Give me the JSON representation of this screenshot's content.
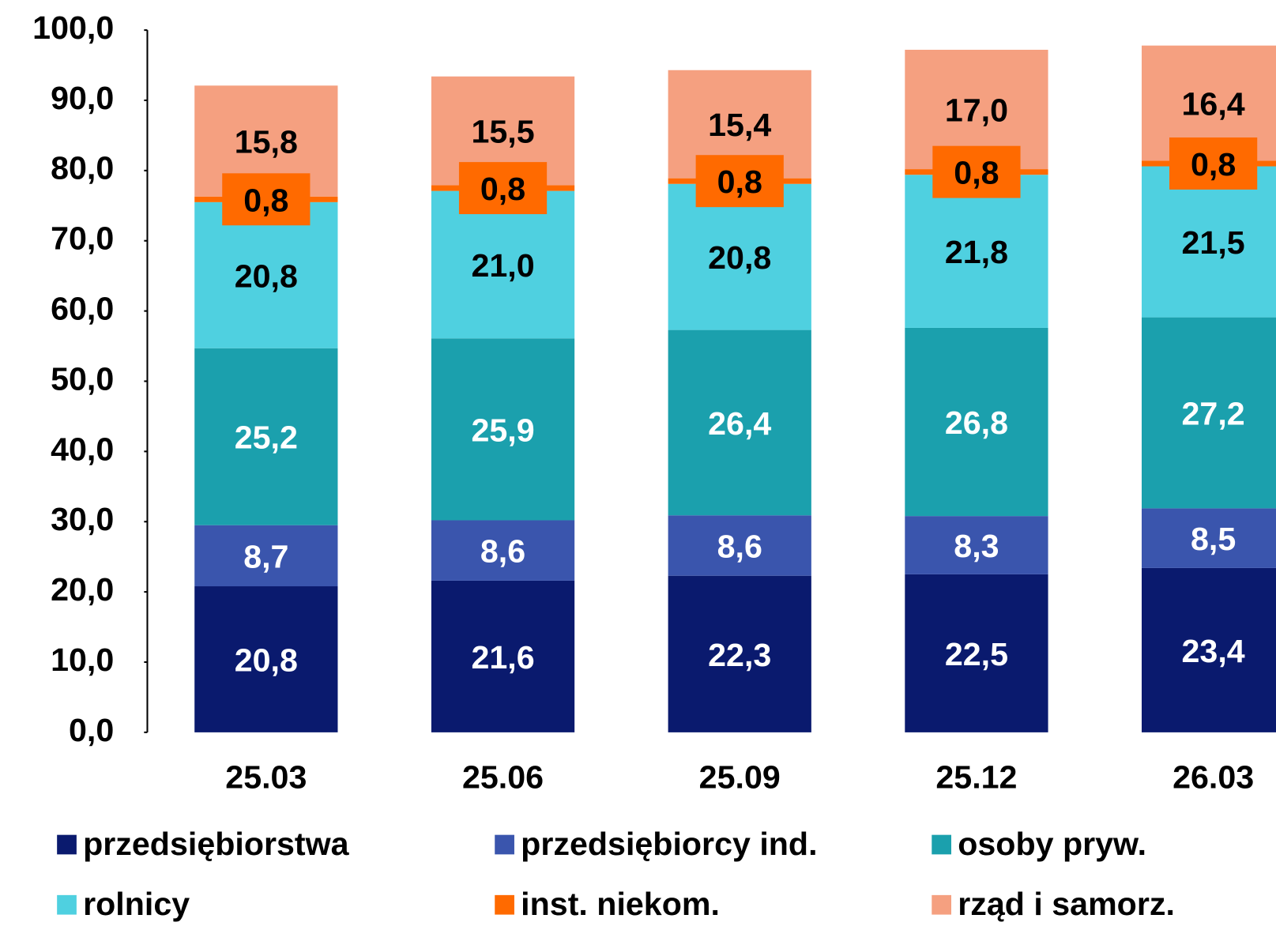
{
  "chart_data": {
    "type": "stacked_bar",
    "categories": [
      "25.03",
      "25.06",
      "25.09",
      "25.12",
      "26.03"
    ],
    "series": [
      {
        "name": "przedsiębiorstwa",
        "color": "#0a1a6e",
        "label_color": "#ffffff",
        "values": [
          20.8,
          21.6,
          22.3,
          22.5,
          23.4
        ],
        "value_labels": [
          "20,8",
          "21,6",
          "22,3",
          "22,5",
          "23,4"
        ]
      },
      {
        "name": "przedsiębiorcy ind.",
        "color": "#3a55ad",
        "label_color": "#ffffff",
        "values": [
          8.7,
          8.6,
          8.6,
          8.3,
          8.5
        ],
        "value_labels": [
          "8,7",
          "8,6",
          "8,6",
          "8,3",
          "8,5"
        ]
      },
      {
        "name": "osoby pryw.",
        "color": "#1ba0ad",
        "label_color": "#ffffff",
        "values": [
          25.2,
          25.9,
          26.4,
          26.8,
          27.2
        ],
        "value_labels": [
          "25,2",
          "25,9",
          "26,4",
          "26,8",
          "27,2"
        ]
      },
      {
        "name": "rolnicy",
        "color": "#4fd0e0",
        "label_color": "#000000",
        "values": [
          20.8,
          21.0,
          20.8,
          21.8,
          21.5
        ],
        "value_labels": [
          "20,8",
          "21,0",
          "20,8",
          "21,8",
          "21,5"
        ]
      },
      {
        "name": "inst. niekom.",
        "color": "#ff6a00",
        "label_color": "#000000",
        "values": [
          0.8,
          0.8,
          0.8,
          0.8,
          0.8
        ],
        "value_labels": [
          "0,8",
          "0,8",
          "0,8",
          "0,8",
          "0,8"
        ]
      },
      {
        "name": "rząd i samorz.",
        "color": "#f5a080",
        "label_color": "#000000",
        "values": [
          15.8,
          15.5,
          15.4,
          17.0,
          16.4
        ],
        "value_labels": [
          "15,8",
          "15,5",
          "15,4",
          "17,0",
          "16,4"
        ]
      }
    ],
    "ylim": [
      0,
      100
    ],
    "yticks": [
      {
        "value": 0,
        "label": "0,0"
      },
      {
        "value": 10,
        "label": "10,0"
      },
      {
        "value": 20,
        "label": "20,0"
      },
      {
        "value": 30,
        "label": "30,0"
      },
      {
        "value": 40,
        "label": "40,0"
      },
      {
        "value": 50,
        "label": "50,0"
      },
      {
        "value": 60,
        "label": "60,0"
      },
      {
        "value": 70,
        "label": "70,0"
      },
      {
        "value": 80,
        "label": "80,0"
      },
      {
        "value": 90,
        "label": "90,0"
      },
      {
        "value": 100,
        "label": "100,0"
      }
    ],
    "legend": "bottom"
  }
}
